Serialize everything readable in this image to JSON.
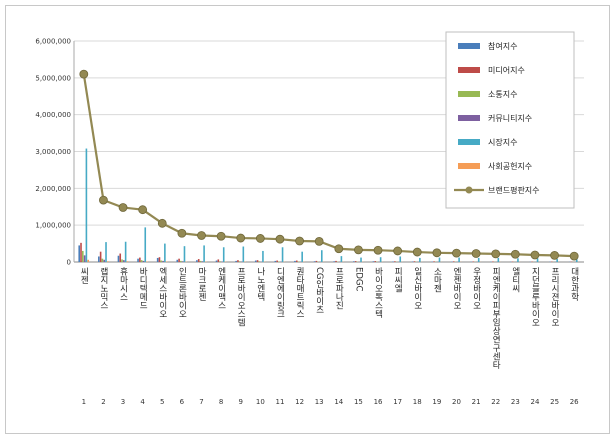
{
  "chart_data": {
    "type": "bar",
    "title": "",
    "xlabel": "",
    "ylabel": "",
    "ylim": [
      0,
      6000000
    ],
    "yticks": [
      "0",
      "1,000,000",
      "2,000,000",
      "3,000,000",
      "4,000,000",
      "5,000,000",
      "6,000,000"
    ],
    "grid": true,
    "legend_position": "top-right",
    "categories": [
      "씨젠",
      "랩지노믹스",
      "휴마시스",
      "바디텍메드",
      "엑세스바이오",
      "인트론바이오",
      "마크로젠",
      "엔케이맥스",
      "프로바이오스템",
      "나노엔텍",
      "디엔에이링크",
      "퀀타매트릭스",
      "CG인바이츠",
      "프로파나진",
      "EDGC",
      "바이오톡스텍",
      "피씨엘",
      "일신바이오",
      "소마젠",
      "엔젠바이오",
      "우정바이오",
      "피엔케이피부임상연구센타",
      "엘티씨",
      "지던블루바이오",
      "프리시젼바이오",
      "대한과학"
    ],
    "numbers": [
      "1",
      "2",
      "3",
      "4",
      "5",
      "6",
      "7",
      "8",
      "9",
      "10",
      "11",
      "12",
      "13",
      "14",
      "15",
      "16",
      "17",
      "18",
      "19",
      "20",
      "21",
      "22",
      "23",
      "24",
      "25",
      "26"
    ],
    "series": [
      {
        "name": "참여지수",
        "kind": "bar",
        "color": "#4a7ebb",
        "values": [
          450000,
          150000,
          170000,
          90000,
          110000,
          60000,
          50000,
          40000,
          30000,
          40000,
          30000,
          30000,
          20000,
          20000,
          20000,
          20000,
          15000,
          15000,
          12000,
          12000,
          10000,
          10000,
          8000,
          8000,
          8000,
          6000
        ]
      },
      {
        "name": "미디어지수",
        "kind": "bar",
        "color": "#be4b48",
        "values": [
          520000,
          280000,
          230000,
          120000,
          130000,
          90000,
          80000,
          70000,
          50000,
          50000,
          40000,
          40000,
          30000,
          30000,
          25000,
          25000,
          20000,
          20000,
          18000,
          18000,
          15000,
          15000,
          12000,
          12000,
          12000,
          10000
        ]
      },
      {
        "name": "소통지수",
        "kind": "bar",
        "color": "#98b954",
        "values": [
          300000,
          90000,
          70000,
          50000,
          40000,
          30000,
          30000,
          20000,
          20000,
          20000,
          15000,
          15000,
          10000,
          10000,
          10000,
          10000,
          8000,
          8000,
          6000,
          6000,
          5000,
          5000,
          4000,
          4000,
          4000,
          3000
        ]
      },
      {
        "name": "커뮤니티지수",
        "kind": "bar",
        "color": "#7d60a0",
        "values": [
          180000,
          60000,
          50000,
          30000,
          30000,
          20000,
          20000,
          15000,
          15000,
          10000,
          10000,
          10000,
          8000,
          8000,
          8000,
          8000,
          6000,
          6000,
          5000,
          5000,
          4000,
          4000,
          3000,
          3000,
          3000,
          2000
        ]
      },
      {
        "name": "시장지수",
        "kind": "bar",
        "color": "#46aac5",
        "values": [
          3080000,
          540000,
          550000,
          940000,
          500000,
          430000,
          450000,
          400000,
          420000,
          300000,
          400000,
          280000,
          320000,
          160000,
          120000,
          130000,
          150000,
          110000,
          120000,
          120000,
          110000,
          110000,
          100000,
          100000,
          80000,
          70000
        ]
      },
      {
        "name": "사회공헌지수",
        "kind": "bar",
        "color": "#f59d56",
        "values": [
          60000,
          20000,
          20000,
          15000,
          15000,
          10000,
          10000,
          10000,
          10000,
          8000,
          8000,
          8000,
          6000,
          6000,
          6000,
          6000,
          5000,
          5000,
          4000,
          4000,
          3000,
          3000,
          3000,
          3000,
          3000,
          2000
        ]
      },
      {
        "name": "브랜드평판지수",
        "kind": "line",
        "color": "#938953",
        "values": [
          5100000,
          1680000,
          1480000,
          1420000,
          1050000,
          780000,
          720000,
          700000,
          650000,
          640000,
          620000,
          570000,
          560000,
          360000,
          330000,
          320000,
          300000,
          270000,
          250000,
          240000,
          230000,
          220000,
          210000,
          190000,
          180000,
          160000
        ]
      }
    ]
  }
}
